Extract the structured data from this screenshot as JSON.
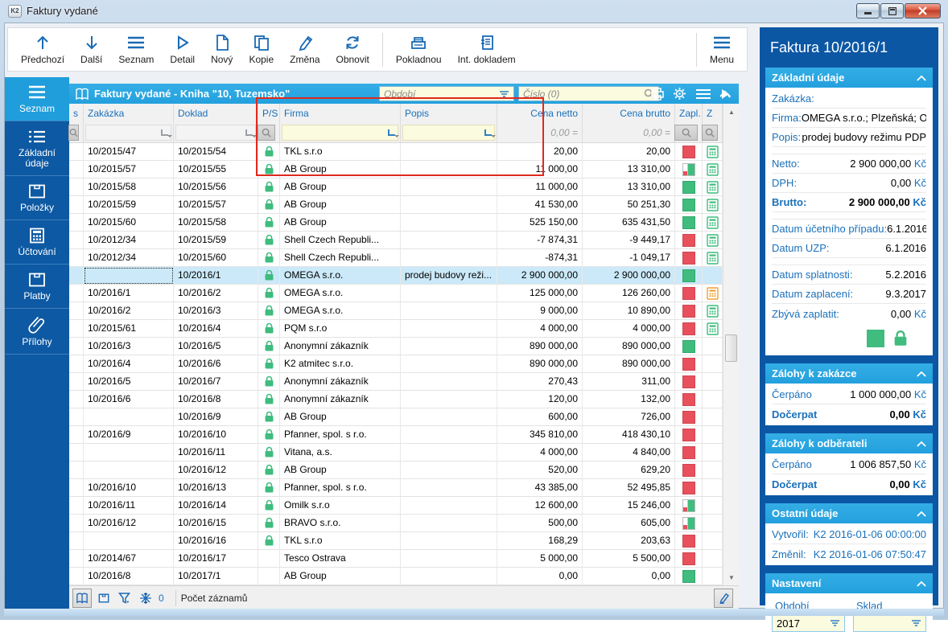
{
  "window": {
    "title": "Faktury vydané",
    "controls": [
      "minimize",
      "maximize",
      "close"
    ]
  },
  "toolbar": {
    "buttons": [
      {
        "label": "Předchozí",
        "icon": "arrow-up-icon"
      },
      {
        "label": "Další",
        "icon": "arrow-down-icon"
      },
      {
        "label": "Seznam",
        "icon": "list-icon"
      },
      {
        "label": "Detail",
        "icon": "detail-icon"
      },
      {
        "label": "Nový",
        "icon": "new-document-icon"
      },
      {
        "label": "Kopie",
        "icon": "copy-icon"
      },
      {
        "label": "Změna",
        "icon": "edit-pencil-icon"
      },
      {
        "label": "Obnovit",
        "icon": "refresh-icon"
      },
      {
        "label": "Pokladnou",
        "icon": "cash-register-icon"
      },
      {
        "label": "Int. dokladem",
        "icon": "internal-document-icon"
      }
    ],
    "menu_label": "Menu"
  },
  "sidebar": {
    "items": [
      {
        "label": "Seznam",
        "icon": "list-icon",
        "selected": true
      },
      {
        "label": "Základní údaje",
        "icon": "detail-list-icon",
        "selected": false
      },
      {
        "label": "Položky",
        "icon": "items-box-icon",
        "selected": false
      },
      {
        "label": "Účtování",
        "icon": "calculator-icon",
        "selected": false
      },
      {
        "label": "Platby",
        "icon": "payments-box-icon",
        "selected": false
      },
      {
        "label": "Přílohy",
        "icon": "paperclip-icon",
        "selected": false
      }
    ]
  },
  "grid": {
    "title": "Faktury vydané - Kniha \"10, Tuzemsko\"",
    "period_placeholder": "Období",
    "number_placeholder": "Číslo (0)",
    "columns": [
      "s",
      "Zakázka",
      "Doklad",
      "P/S",
      "Firma",
      "Popis",
      "Cena netto",
      "Cena brutto",
      "Zapl.",
      "Z"
    ],
    "amount_filter_placeholder": "0,00 =",
    "rows": [
      {
        "zakazka": "10/2015/47",
        "doklad": "10/2015/54",
        "locked": true,
        "firma": "TKL s.r.o",
        "popis": "",
        "cena_netto": "20,00",
        "cena_brutto": "20,00",
        "zapl": "red",
        "z": "green",
        "selected": false
      },
      {
        "zakazka": "10/2015/57",
        "doklad": "10/2015/55",
        "locked": true,
        "firma": "AB Group",
        "popis": "",
        "cena_netto": "11 000,00",
        "cena_brutto": "13 310,00",
        "zapl": "partial",
        "z": "green",
        "selected": false
      },
      {
        "zakazka": "10/2015/58",
        "doklad": "10/2015/56",
        "locked": true,
        "firma": "AB Group",
        "popis": "",
        "cena_netto": "11 000,00",
        "cena_brutto": "13 310,00",
        "zapl": "green",
        "z": "green",
        "selected": false
      },
      {
        "zakazka": "10/2015/59",
        "doklad": "10/2015/57",
        "locked": true,
        "firma": "AB Group",
        "popis": "",
        "cena_netto": "41 530,00",
        "cena_brutto": "50 251,30",
        "zapl": "green",
        "z": "green",
        "selected": false
      },
      {
        "zakazka": "10/2015/60",
        "doklad": "10/2015/58",
        "locked": true,
        "firma": "AB Group",
        "popis": "",
        "cena_netto": "525 150,00",
        "cena_brutto": "635 431,50",
        "zapl": "green",
        "z": "green",
        "selected": false
      },
      {
        "zakazka": "10/2012/34",
        "doklad": "10/2015/59",
        "locked": true,
        "firma": "Shell Czech Republi...",
        "popis": "",
        "cena_netto": "-7 874,31",
        "cena_brutto": "-9 449,17",
        "zapl": "red",
        "z": "green",
        "selected": false
      },
      {
        "zakazka": "10/2012/34",
        "doklad": "10/2015/60",
        "locked": true,
        "firma": "Shell Czech Republi...",
        "popis": "",
        "cena_netto": "-874,31",
        "cena_brutto": "-1 049,17",
        "zapl": "red",
        "z": "green",
        "selected": false
      },
      {
        "zakazka": "",
        "doklad": "10/2016/1",
        "locked": true,
        "firma": "OMEGA s.r.o.",
        "popis": "prodej budovy reži...",
        "cena_netto": "2 900 000,00",
        "cena_brutto": "2 900 000,00",
        "zapl": "green",
        "z": "",
        "selected": true
      },
      {
        "zakazka": "10/2016/1",
        "doklad": "10/2016/2",
        "locked": true,
        "firma": "OMEGA s.r.o.",
        "popis": "",
        "cena_netto": "125 000,00",
        "cena_brutto": "126 260,00",
        "zapl": "red",
        "z": "orange",
        "selected": false
      },
      {
        "zakazka": "10/2016/2",
        "doklad": "10/2016/3",
        "locked": true,
        "firma": "OMEGA s.r.o.",
        "popis": "",
        "cena_netto": "9 000,00",
        "cena_brutto": "10 890,00",
        "zapl": "red",
        "z": "green",
        "selected": false
      },
      {
        "zakazka": "10/2015/61",
        "doklad": "10/2016/4",
        "locked": true,
        "firma": "PQM s.r.o",
        "popis": "",
        "cena_netto": "4 000,00",
        "cena_brutto": "4 000,00",
        "zapl": "red",
        "z": "green",
        "selected": false
      },
      {
        "zakazka": "10/2016/3",
        "doklad": "10/2016/5",
        "locked": true,
        "firma": "Anonymní zákazník",
        "popis": "",
        "cena_netto": "890 000,00",
        "cena_brutto": "890 000,00",
        "zapl": "green",
        "z": "",
        "selected": false
      },
      {
        "zakazka": "10/2016/4",
        "doklad": "10/2016/6",
        "locked": true,
        "firma": "K2 atmitec s.r.o.",
        "popis": "",
        "cena_netto": "890 000,00",
        "cena_brutto": "890 000,00",
        "zapl": "red",
        "z": "",
        "selected": false
      },
      {
        "zakazka": "10/2016/5",
        "doklad": "10/2016/7",
        "locked": true,
        "firma": "Anonymní zákazník",
        "popis": "",
        "cena_netto": "270,43",
        "cena_brutto": "311,00",
        "zapl": "red",
        "z": "",
        "selected": false
      },
      {
        "zakazka": "10/2016/6",
        "doklad": "10/2016/8",
        "locked": true,
        "firma": "Anonymní zákazník",
        "popis": "",
        "cena_netto": "120,00",
        "cena_brutto": "132,00",
        "zapl": "red",
        "z": "",
        "selected": false
      },
      {
        "zakazka": "",
        "doklad": "10/2016/9",
        "locked": true,
        "firma": "AB Group",
        "popis": "",
        "cena_netto": "600,00",
        "cena_brutto": "726,00",
        "zapl": "red",
        "z": "",
        "selected": false
      },
      {
        "zakazka": "10/2016/9",
        "doklad": "10/2016/10",
        "locked": true,
        "firma": "Pfanner, spol. s r.o.",
        "popis": "",
        "cena_netto": "345 810,00",
        "cena_brutto": "418 430,10",
        "zapl": "red",
        "z": "",
        "selected": false
      },
      {
        "zakazka": "",
        "doklad": "10/2016/11",
        "locked": true,
        "firma": "Vitana, a.s.",
        "popis": "",
        "cena_netto": "4 000,00",
        "cena_brutto": "4 840,00",
        "zapl": "red",
        "z": "",
        "selected": false
      },
      {
        "zakazka": "",
        "doklad": "10/2016/12",
        "locked": true,
        "firma": "AB Group",
        "popis": "",
        "cena_netto": "520,00",
        "cena_brutto": "629,20",
        "zapl": "red",
        "z": "",
        "selected": false
      },
      {
        "zakazka": "10/2016/10",
        "doklad": "10/2016/13",
        "locked": true,
        "firma": "Pfanner, spol. s r.o.",
        "popis": "",
        "cena_netto": "43 385,00",
        "cena_brutto": "52 495,85",
        "zapl": "red",
        "z": "",
        "selected": false
      },
      {
        "zakazka": "10/2016/11",
        "doklad": "10/2016/14",
        "locked": true,
        "firma": "Omilk s.r.o",
        "popis": "",
        "cena_netto": "12 600,00",
        "cena_brutto": "15 246,00",
        "zapl": "partial",
        "z": "",
        "selected": false
      },
      {
        "zakazka": "10/2016/12",
        "doklad": "10/2016/15",
        "locked": true,
        "firma": "BRAVO s.r.o.",
        "popis": "",
        "cena_netto": "500,00",
        "cena_brutto": "605,00",
        "zapl": "partial",
        "z": "",
        "selected": false
      },
      {
        "zakazka": "",
        "doklad": "10/2016/16",
        "locked": true,
        "firma": "TKL s.r.o",
        "popis": "",
        "cena_netto": "168,29",
        "cena_brutto": "203,63",
        "zapl": "red",
        "z": "",
        "selected": false
      },
      {
        "zakazka": "10/2014/67",
        "doklad": "10/2016/17",
        "locked": false,
        "firma": "Tesco Ostrava",
        "popis": "",
        "cena_netto": "5 000,00",
        "cena_brutto": "5 500,00",
        "zapl": "red",
        "z": "",
        "selected": false
      },
      {
        "zakazka": "10/2016/8",
        "doklad": "10/2017/1",
        "locked": false,
        "firma": "AB Group",
        "popis": "",
        "cena_netto": "0,00",
        "cena_brutto": "0,00",
        "zapl": "green",
        "z": "",
        "selected": false
      }
    ]
  },
  "status_bar": {
    "frozen_count": "0",
    "records_label": "Počet záznamů"
  },
  "detail_panel": {
    "title": "Faktura 10/2016/1",
    "sections": {
      "basic": {
        "header": "Základní údaje",
        "groups": [
          [
            {
              "label": "Zakázka:",
              "value": ""
            },
            {
              "label": "Firma:",
              "value": "OMEGA s.r.o.; Plzeňská; Ostra..."
            },
            {
              "label": "Popis:",
              "value": "prodej budovy režimu PDP"
            }
          ],
          [
            {
              "label": "Netto:",
              "value": "2 900 000,00",
              "unit": " Kč"
            },
            {
              "label": "DPH:",
              "value": "0,00",
              "unit": " Kč"
            },
            {
              "label": "Brutto:",
              "value": "2 900 000,00",
              "unit": " Kč",
              "bold": true
            }
          ],
          [
            {
              "label": "Datum účetního případu:",
              "value": "6.1.2016"
            },
            {
              "label": "Datum UZP:",
              "value": "6.1.2016"
            }
          ],
          [
            {
              "label": "Datum splatnosti:",
              "value": "5.2.2016"
            },
            {
              "label": "Datum zaplacení:",
              "value": "9.3.2017"
            },
            {
              "label": "Zbývá zaplatit:",
              "value": "0,00",
              "unit": " Kč"
            }
          ]
        ],
        "status_icons": [
          "paid-green-square",
          "lock-icon"
        ]
      },
      "advances_order": {
        "header": "Zálohy k zakázce",
        "rows": [
          {
            "label": "Čerpáno",
            "value": "1 000 000,00",
            "unit": " Kč"
          },
          {
            "label": "Dočerpat",
            "value": "0,00",
            "unit": " Kč",
            "bold": true
          }
        ]
      },
      "advances_customer": {
        "header": "Zálohy k odběrateli",
        "rows": [
          {
            "label": "Čerpáno",
            "value": "1 006 857,50",
            "unit": " Kč"
          },
          {
            "label": "Dočerpat",
            "value": "0,00",
            "unit": " Kč",
            "bold": true
          }
        ]
      },
      "other": {
        "header": "Ostatní údaje",
        "rows": [
          {
            "label": "Vytvořil:",
            "value": "K2 2016-01-06 00:00:00",
            "blue": true
          },
          {
            "label": "Změnil:",
            "value": "K2 2016-01-06 07:50:47",
            "blue": true
          }
        ]
      },
      "settings": {
        "header": "Nastavení",
        "fields": [
          {
            "label": "Období",
            "value": "2017"
          },
          {
            "label": "Sklad",
            "value": ""
          }
        ]
      }
    }
  },
  "colors": {
    "accent_blue": "#209ddb",
    "panel_blue": "#0b57a4",
    "paid_green": "#3fbc7e",
    "unpaid_red": "#e8515c",
    "annotation_red": "#e0291d"
  }
}
